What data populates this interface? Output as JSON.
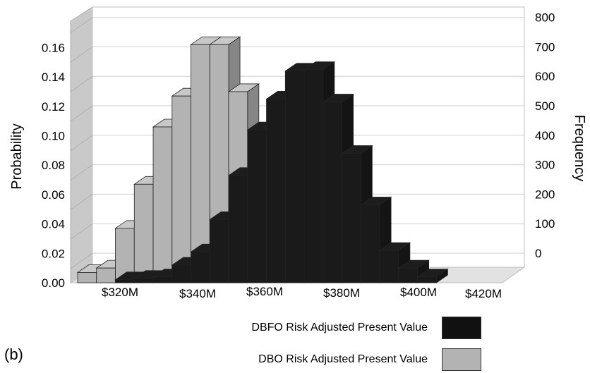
{
  "chart_data": {
    "type": "bar",
    "style": "3d-histogram",
    "x_tick_labels": [
      "$320M",
      "$340M",
      "$360M",
      "$380M",
      "$400M",
      "$420M"
    ],
    "left_axis": {
      "label": "Probability",
      "ticks": [
        "0.00",
        "0.02",
        "0.04",
        "0.06",
        "0.08",
        "0.10",
        "0.12",
        "0.14",
        "0.16"
      ],
      "range": [
        0,
        0.18
      ]
    },
    "right_axis": {
      "label": "Frequency",
      "ticks": [
        "0",
        "100",
        "200",
        "300",
        "400",
        "500",
        "600",
        "700",
        "800"
      ],
      "range": [
        -100,
        800
      ]
    },
    "grid": true,
    "legend_position": "bottom-right",
    "series": [
      {
        "name": "DBO Risk Adjusted Present Value",
        "color": "#b3b3b3",
        "bins": [
          {
            "x": 315,
            "probability": 0.007
          },
          {
            "x": 320,
            "probability": 0.01
          },
          {
            "x": 325,
            "probability": 0.037
          },
          {
            "x": 330,
            "probability": 0.067
          },
          {
            "x": 335,
            "probability": 0.106
          },
          {
            "x": 340,
            "probability": 0.127
          },
          {
            "x": 345,
            "probability": 0.162
          },
          {
            "x": 350,
            "probability": 0.162
          },
          {
            "x": 355,
            "probability": 0.13
          }
        ]
      },
      {
        "name": "DBFO Risk Adjusted Present Value",
        "color": "#1a1a1a",
        "bins": [
          {
            "x": 325,
            "probability": 0.002
          },
          {
            "x": 330,
            "probability": 0.003
          },
          {
            "x": 335,
            "probability": 0.004
          },
          {
            "x": 340,
            "probability": 0.012
          },
          {
            "x": 345,
            "probability": 0.021
          },
          {
            "x": 350,
            "probability": 0.043
          },
          {
            "x": 355,
            "probability": 0.073
          },
          {
            "x": 360,
            "probability": 0.104
          },
          {
            "x": 365,
            "probability": 0.125
          },
          {
            "x": 370,
            "probability": 0.144
          },
          {
            "x": 375,
            "probability": 0.145
          },
          {
            "x": 380,
            "probability": 0.123
          },
          {
            "x": 385,
            "probability": 0.088
          },
          {
            "x": 390,
            "probability": 0.053
          },
          {
            "x": 395,
            "probability": 0.022
          },
          {
            "x": 400,
            "probability": 0.01
          },
          {
            "x": 405,
            "probability": 0.004
          }
        ]
      }
    ]
  },
  "legend": {
    "dbfo_label": "DBFO Risk Adjusted Present Value",
    "dbo_label": "DBO Risk Adjusted Present Value"
  },
  "panel_label": "(b)"
}
